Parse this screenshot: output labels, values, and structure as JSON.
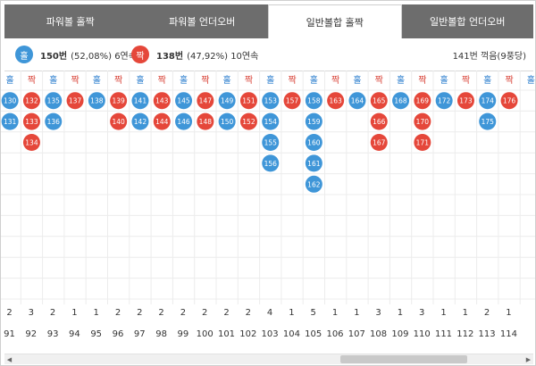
{
  "tabs": [
    {
      "label": "파워볼 홀짝",
      "active": false
    },
    {
      "label": "파워볼 언더오버",
      "active": false
    },
    {
      "label": "일반볼합 홀짝",
      "active": true
    },
    {
      "label": "일반볼합 언더오버",
      "active": false
    }
  ],
  "summary": {
    "odd_badge": "홀",
    "odd_count": "150번",
    "odd_detail": "(52,08%) 6연속",
    "even_badge": "짝",
    "even_count": "138번",
    "even_detail": "(47,92%) 10연속",
    "right_text": "141번 꺽음(9풍당)"
  },
  "colors": {
    "odd": "#3f96d8",
    "even": "#e5473a",
    "header_odd": "#2d7fcf",
    "header_even": "#d9453a",
    "tab_bg": "#6d6d6d"
  },
  "columns": [
    {
      "type": "홀",
      "numbers": [
        "130",
        "131"
      ],
      "count": "2",
      "round": "91"
    },
    {
      "type": "짝",
      "numbers": [
        "132",
        "133",
        "134"
      ],
      "count": "3",
      "round": "92"
    },
    {
      "type": "홀",
      "numbers": [
        "135",
        "136"
      ],
      "count": "2",
      "round": "93"
    },
    {
      "type": "짝",
      "numbers": [
        "137"
      ],
      "count": "1",
      "round": "94"
    },
    {
      "type": "홀",
      "numbers": [
        "138"
      ],
      "count": "1",
      "round": "95"
    },
    {
      "type": "짝",
      "numbers": [
        "139",
        "140"
      ],
      "count": "2",
      "round": "96"
    },
    {
      "type": "홀",
      "numbers": [
        "141",
        "142"
      ],
      "count": "2",
      "round": "97"
    },
    {
      "type": "짝",
      "numbers": [
        "143",
        "144"
      ],
      "count": "2",
      "round": "98"
    },
    {
      "type": "홀",
      "numbers": [
        "145",
        "146"
      ],
      "count": "2",
      "round": "99"
    },
    {
      "type": "짝",
      "numbers": [
        "147",
        "148"
      ],
      "count": "2",
      "round": "100"
    },
    {
      "type": "홀",
      "numbers": [
        "149",
        "150"
      ],
      "count": "2",
      "round": "101"
    },
    {
      "type": "짝",
      "numbers": [
        "151",
        "152"
      ],
      "count": "2",
      "round": "102"
    },
    {
      "type": "홀",
      "numbers": [
        "153",
        "154",
        "155",
        "156"
      ],
      "count": "4",
      "round": "103"
    },
    {
      "type": "짝",
      "numbers": [
        "157"
      ],
      "count": "1",
      "round": "104"
    },
    {
      "type": "홀",
      "numbers": [
        "158",
        "159",
        "160",
        "161",
        "162"
      ],
      "count": "5",
      "round": "105"
    },
    {
      "type": "짝",
      "numbers": [
        "163"
      ],
      "count": "1",
      "round": "106"
    },
    {
      "type": "홀",
      "numbers": [
        "164"
      ],
      "count": "1",
      "round": "107"
    },
    {
      "type": "짝",
      "numbers": [
        "165",
        "166",
        "167"
      ],
      "count": "3",
      "round": "108"
    },
    {
      "type": "홀",
      "numbers": [
        "168"
      ],
      "count": "1",
      "round": "109"
    },
    {
      "type": "짝",
      "numbers": [
        "169",
        "170",
        "171"
      ],
      "count": "3",
      "round": "110"
    },
    {
      "type": "홀",
      "numbers": [
        "172"
      ],
      "count": "1",
      "round": "111"
    },
    {
      "type": "짝",
      "numbers": [
        "173"
      ],
      "count": "1",
      "round": "112"
    },
    {
      "type": "홀",
      "numbers": [
        "174",
        "175"
      ],
      "count": "2",
      "round": "113"
    },
    {
      "type": "짝",
      "numbers": [
        "176"
      ],
      "count": "1",
      "round": "114"
    },
    {
      "type": "홀",
      "numbers": [],
      "count": "",
      "round": ""
    }
  ],
  "scroll_left": "◀",
  "scroll_right": "▶"
}
